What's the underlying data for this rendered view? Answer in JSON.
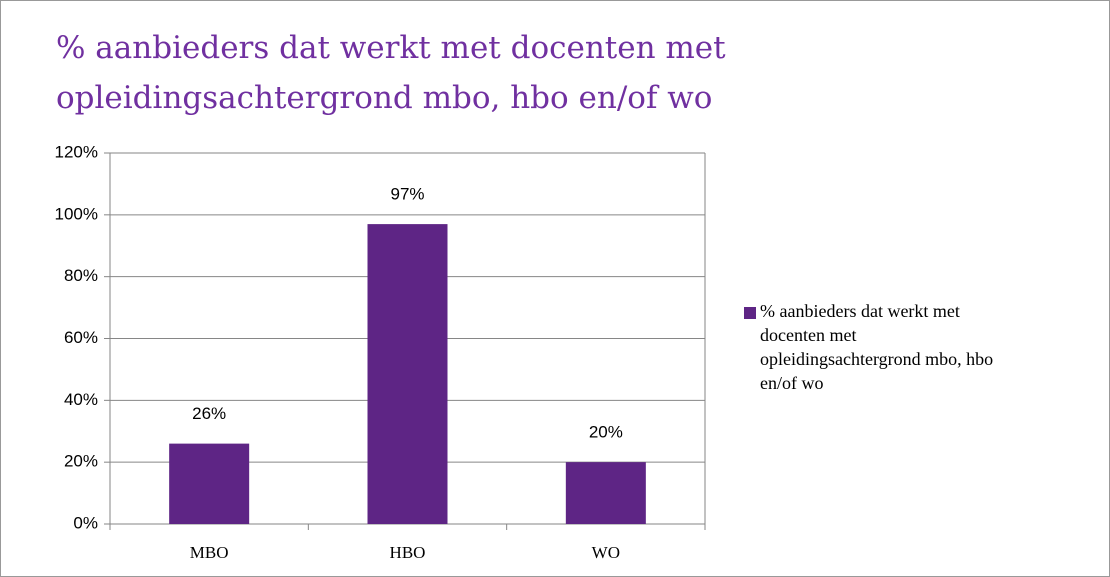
{
  "chart_data": {
    "type": "bar",
    "title": "% aanbieders dat werkt met docenten met opleidingsachtergrond mbo, hbo en/of wo",
    "categories": [
      "MBO",
      "HBO",
      "WO"
    ],
    "series": [
      {
        "name": "% aanbieders dat werkt met docenten met opleidingsachtergrond mbo, hbo en/of wo",
        "color": "#5e2585",
        "values": [
          26,
          97,
          20
        ],
        "value_labels": [
          "26%",
          "97%",
          "20%"
        ]
      }
    ],
    "ylim": [
      0,
      120
    ],
    "yticks": [
      {
        "value": 0,
        "label": "0%"
      },
      {
        "value": 20,
        "label": "20%"
      },
      {
        "value": 40,
        "label": "40%"
      },
      {
        "value": 60,
        "label": "60%"
      },
      {
        "value": 80,
        "label": "80%"
      },
      {
        "value": 100,
        "label": "100%"
      },
      {
        "value": 120,
        "label": "120%"
      }
    ],
    "grid": true,
    "legend": "right"
  }
}
